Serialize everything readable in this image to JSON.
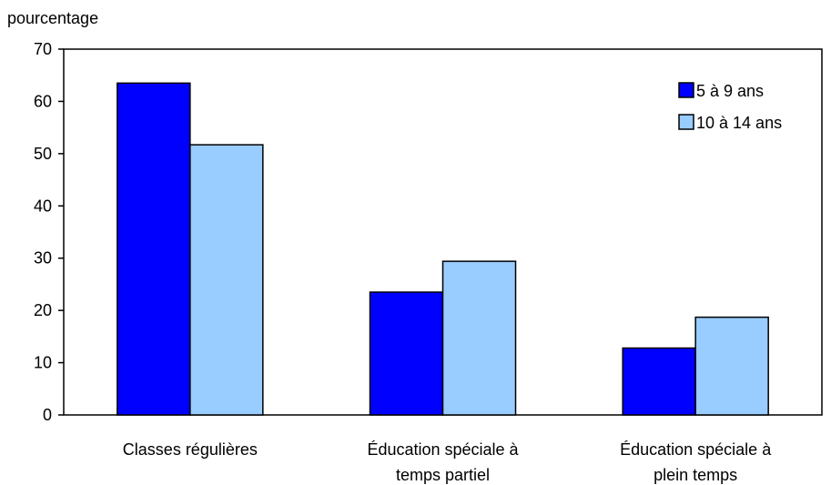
{
  "chart_data": {
    "type": "bar",
    "title": "",
    "xlabel": "",
    "ylabel": "pourcentage",
    "ylim": [
      0,
      70
    ],
    "yticks": [
      0,
      10,
      20,
      30,
      40,
      50,
      60,
      70
    ],
    "categories": [
      [
        "Classes régulières"
      ],
      [
        "Éducation spéciale à",
        "temps partiel"
      ],
      [
        "Éducation spéciale à",
        "plein temps"
      ]
    ],
    "series": [
      {
        "name": "5 à 9 ans",
        "color": "#0000FF",
        "values": [
          63.5,
          23.5,
          12.8
        ]
      },
      {
        "name": "10 à 14 ans",
        "color": "#99CCFF",
        "values": [
          51.7,
          29.4,
          18.7
        ]
      }
    ],
    "grid": false,
    "legend": "top-right"
  }
}
